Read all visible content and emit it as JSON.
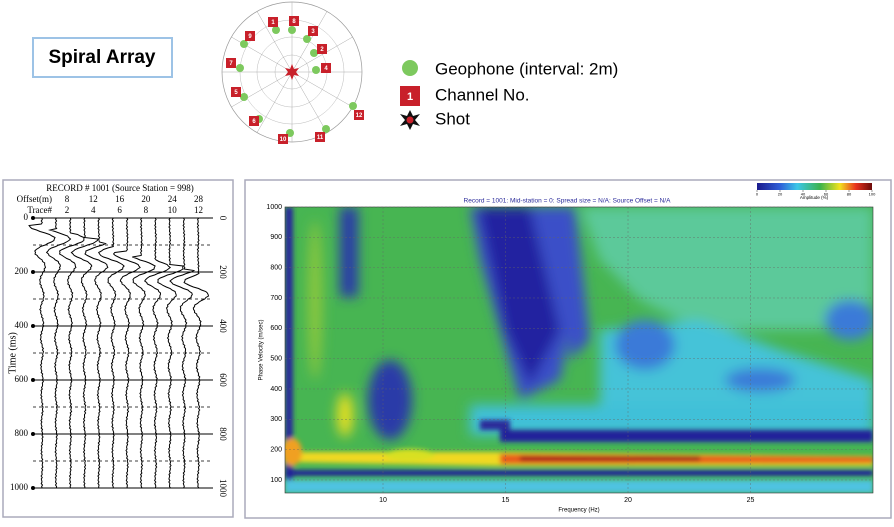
{
  "header": {
    "title": "Spiral Array"
  },
  "array": {
    "channels": [
      "1",
      "8",
      "3",
      "2",
      "4",
      "9",
      "7",
      "5",
      "6",
      "10",
      "11",
      "12"
    ]
  },
  "legend": {
    "geophone": "Geophone (interval: 2m)",
    "channel_icon": "1",
    "channel": "Channel No.",
    "shot": "Shot"
  },
  "record": {
    "title": "RECORD # 1001 (Source Station = 998)",
    "offset_label": "Offset(m)",
    "offsets": [
      "8",
      "12",
      "16",
      "20",
      "24",
      "28"
    ],
    "trace_label": "Trace#",
    "traces": [
      "2",
      "4",
      "6",
      "8",
      "10",
      "12"
    ],
    "time_label": "Time (ms)",
    "tlim": [
      0,
      1000
    ],
    "tticks": [
      0,
      200,
      400,
      600,
      800,
      1000
    ]
  },
  "dispersion": {
    "title": "Record = 1001: Mid-station = 0: Spread size = N/A: Source Offset = N/A",
    "x_label": "Frequency (Hz)",
    "y_label": "Phase Velocity (m/sec)",
    "xlim": [
      6,
      30
    ],
    "ylim": [
      57,
      1000
    ],
    "xticks": [
      10,
      15,
      20,
      25
    ],
    "yticks": [
      100,
      200,
      300,
      400,
      500,
      600,
      700,
      800,
      900,
      1000
    ],
    "colorbar_label": "Amplitude (%)",
    "colorbar_ticks": [
      0,
      20,
      40,
      60,
      80,
      100
    ]
  }
}
